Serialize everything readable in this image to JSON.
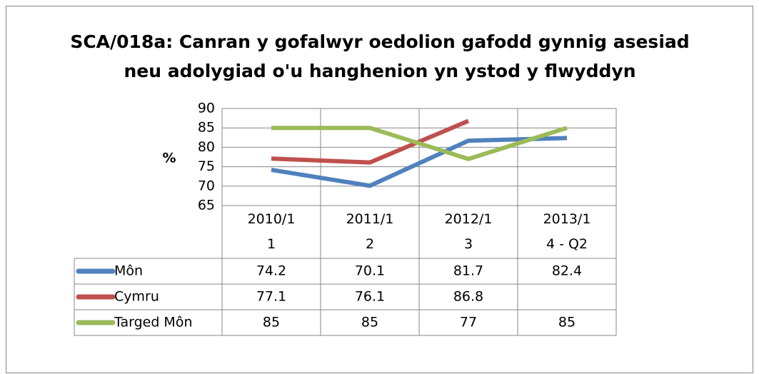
{
  "chart_data": {
    "type": "line",
    "title": "SCA/018a: Canran y gofalwyr oedolion gafodd gynnig asesiad neu adolygiad o'u hanghenion yn ystod y flwyddyn",
    "title_lines": [
      "SCA/018a: Canran y gofalwyr oedolion gafodd gynnig asesiad",
      "neu adolygiad o'u hanghenion yn ystod y flwyddyn"
    ],
    "y_label": "%",
    "categories": [
      "2010/11",
      "2011/12",
      "2012/13",
      "2013/14 - Q2"
    ],
    "series": [
      {
        "name": "Môn",
        "color": "#4f81bd",
        "values": [
          74.2,
          70.1,
          81.7,
          82.4
        ]
      },
      {
        "name": "Cymru",
        "color": "#c0504d",
        "values": [
          77.1,
          76.1,
          86.8,
          null
        ]
      },
      {
        "name": "Targed Môn",
        "color": "#9bbb59",
        "values": [
          85,
          85,
          77,
          85
        ]
      }
    ],
    "ylim": [
      65,
      90
    ],
    "yticks": [
      65,
      70,
      75,
      80,
      85,
      90
    ],
    "grid": true,
    "data_table": true
  }
}
